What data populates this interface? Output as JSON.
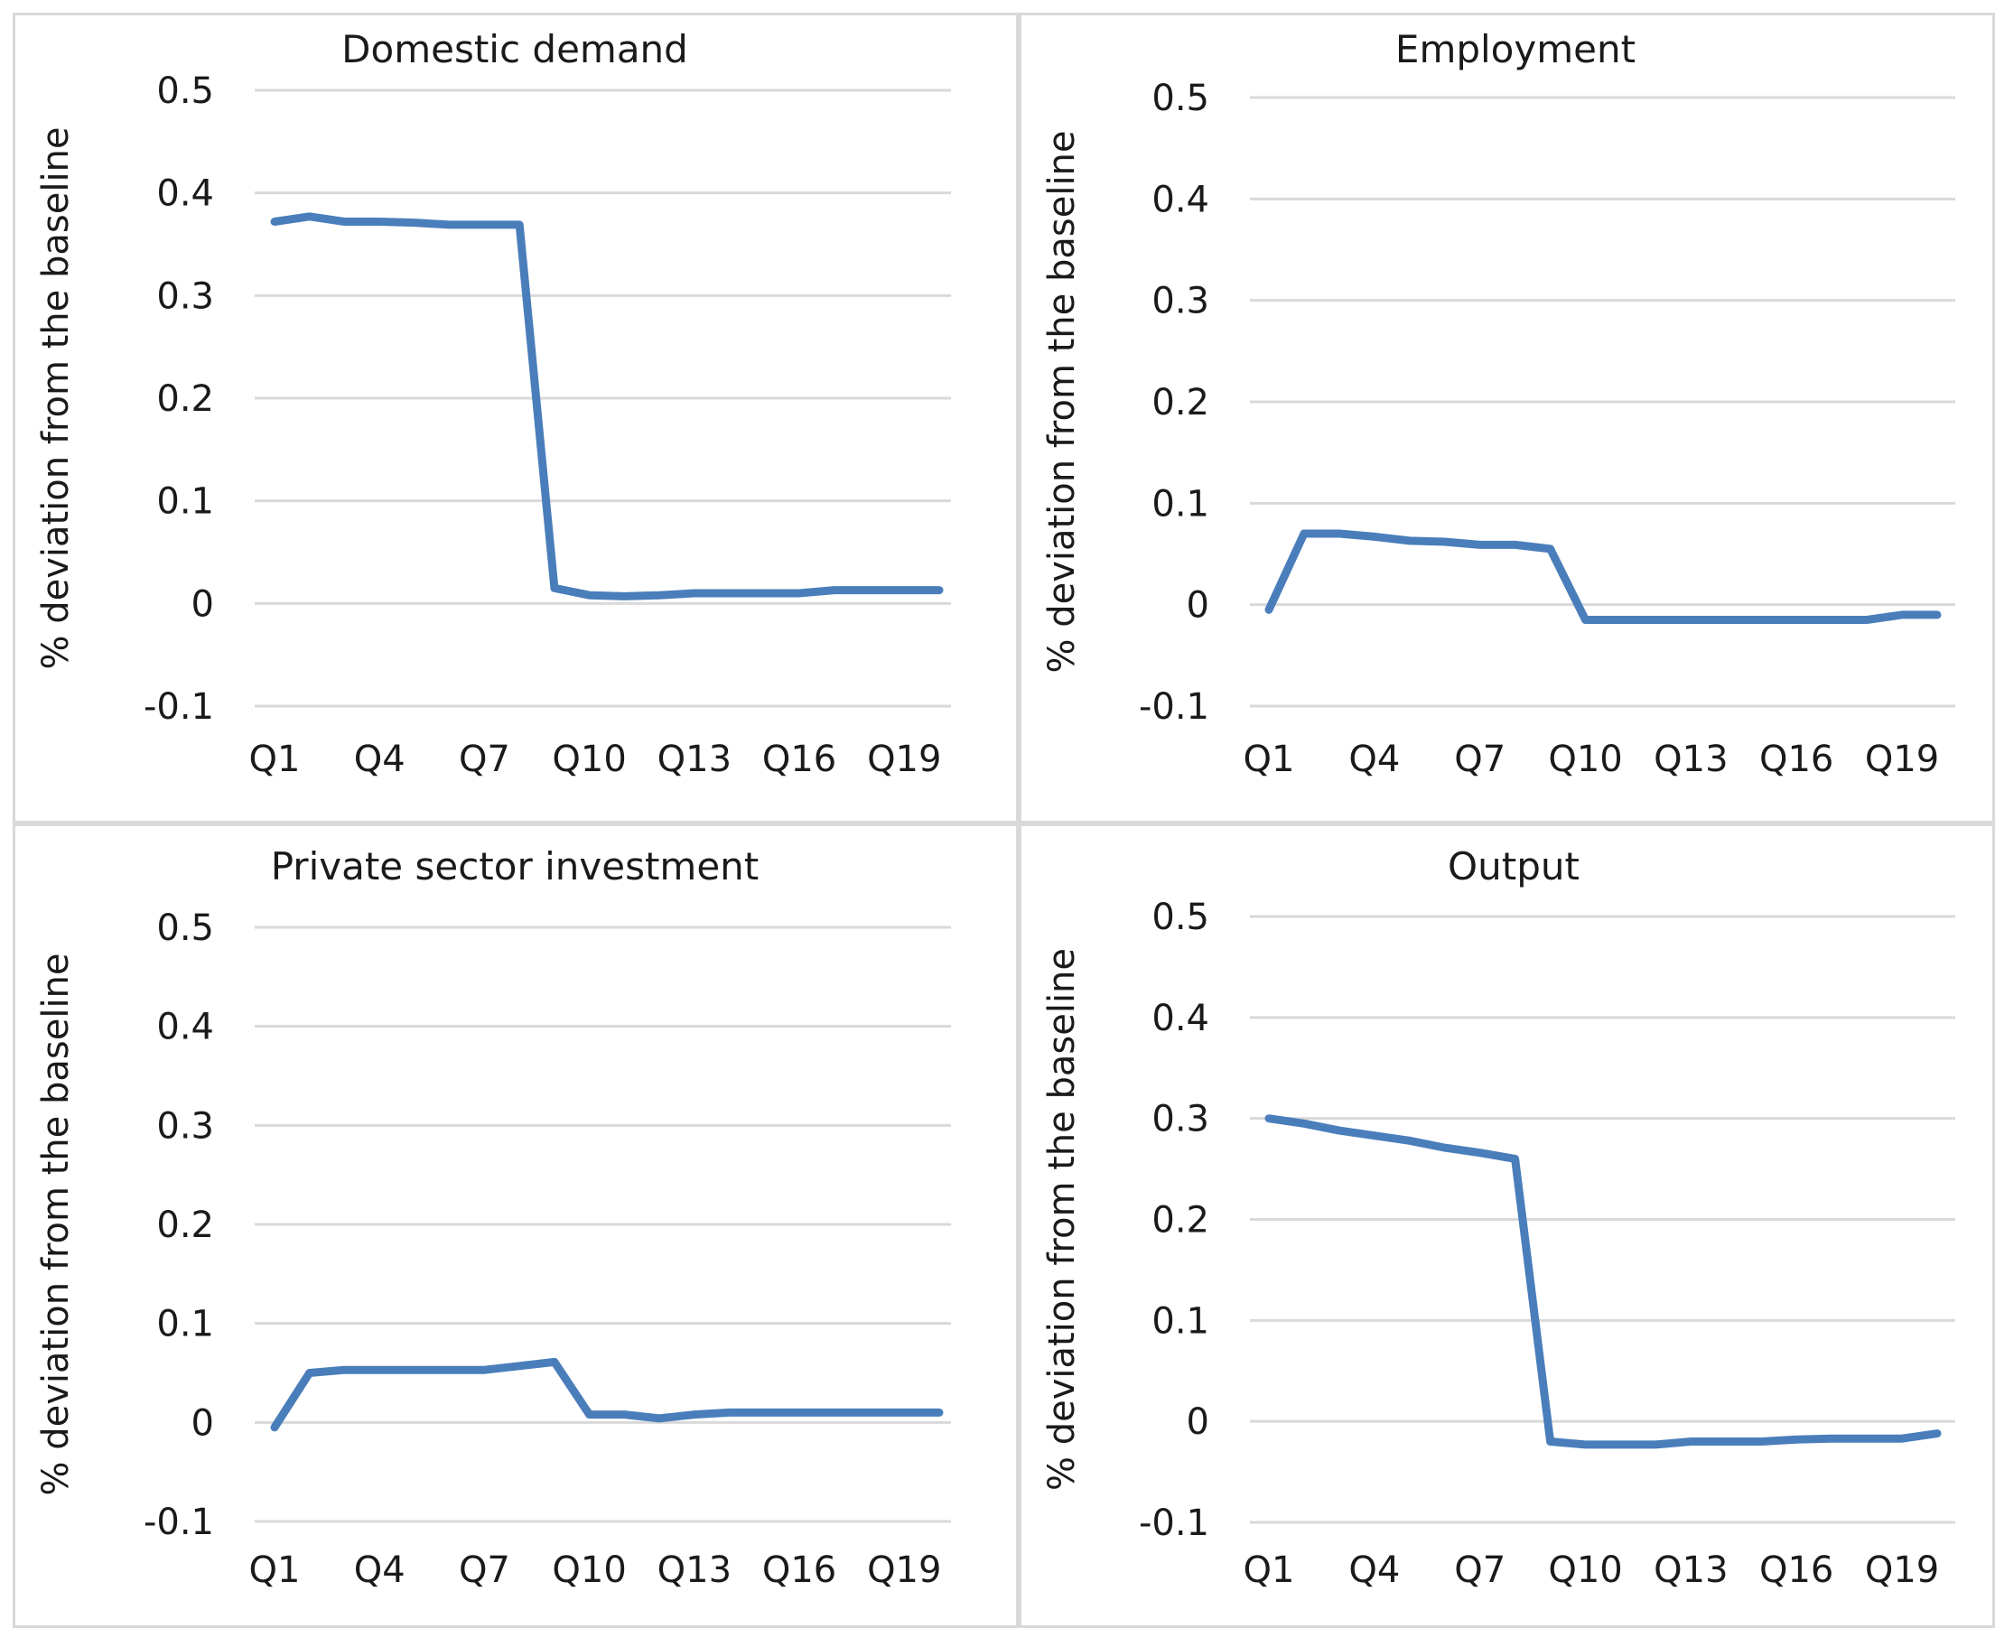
{
  "chart_data": [
    {
      "type": "line",
      "title": "Domestic demand",
      "ylabel": "% deviation from the baseline",
      "ylim": [
        -0.1,
        0.5
      ],
      "yticks": [
        "0.5",
        "0.4",
        "0.3",
        "0.2",
        "0.1",
        "0",
        "-0.1"
      ],
      "yticks_values": [
        0.5,
        0.4,
        0.3,
        0.2,
        0.1,
        0,
        -0.1
      ],
      "xtick_labels": [
        "Q1",
        "Q4",
        "Q7",
        "Q10",
        "Q13",
        "Q16",
        "Q19"
      ],
      "x": [
        "Q1",
        "Q2",
        "Q3",
        "Q4",
        "Q5",
        "Q6",
        "Q7",
        "Q8",
        "Q9",
        "Q10",
        "Q11",
        "Q12",
        "Q13",
        "Q14",
        "Q15",
        "Q16",
        "Q17",
        "Q18",
        "Q19",
        "Q20"
      ],
      "series": [
        {
          "values": [
            0.372,
            0.377,
            0.372,
            0.372,
            0.371,
            0.369,
            0.369,
            0.369,
            0.015,
            0.008,
            0.007,
            0.008,
            0.01,
            0.01,
            0.01,
            0.01,
            0.013,
            0.013,
            0.013,
            0.013
          ]
        }
      ],
      "grid": true,
      "color": "#4a7ebb"
    },
    {
      "type": "line",
      "title": "Employment",
      "ylabel": "% deviation from the baseline",
      "ylim": [
        -0.1,
        0.5
      ],
      "yticks": [
        "0.5",
        "0.4",
        "0.3",
        "0.2",
        "0.1",
        "0",
        "-0.1"
      ],
      "yticks_values": [
        0.5,
        0.4,
        0.3,
        0.2,
        0.1,
        0,
        -0.1
      ],
      "xtick_labels": [
        "Q1",
        "Q4",
        "Q7",
        "Q10",
        "Q13",
        "Q16",
        "Q19"
      ],
      "x": [
        "Q1",
        "Q2",
        "Q3",
        "Q4",
        "Q5",
        "Q6",
        "Q7",
        "Q8",
        "Q9",
        "Q10",
        "Q11",
        "Q12",
        "Q13",
        "Q14",
        "Q15",
        "Q16",
        "Q17",
        "Q18",
        "Q19",
        "Q20"
      ],
      "series": [
        {
          "values": [
            -0.005,
            0.07,
            0.07,
            0.067,
            0.063,
            0.062,
            0.059,
            0.059,
            0.055,
            -0.015,
            -0.015,
            -0.015,
            -0.015,
            -0.015,
            -0.015,
            -0.015,
            -0.015,
            -0.015,
            -0.01,
            -0.01
          ]
        }
      ],
      "grid": true,
      "color": "#4a7ebb"
    },
    {
      "type": "line",
      "title": "Private sector investment",
      "ylabel": "% deviation from the baseline",
      "ylim": [
        -0.1,
        0.5
      ],
      "yticks": [
        "0.5",
        "0.4",
        "0.3",
        "0.2",
        "0.1",
        "0",
        "-0.1"
      ],
      "yticks_values": [
        0.5,
        0.4,
        0.3,
        0.2,
        0.1,
        0,
        -0.1
      ],
      "xtick_labels": [
        "Q1",
        "Q4",
        "Q7",
        "Q10",
        "Q13",
        "Q16",
        "Q19"
      ],
      "x": [
        "Q1",
        "Q2",
        "Q3",
        "Q4",
        "Q5",
        "Q6",
        "Q7",
        "Q8",
        "Q9",
        "Q10",
        "Q11",
        "Q12",
        "Q13",
        "Q14",
        "Q15",
        "Q16",
        "Q17",
        "Q18",
        "Q19",
        "Q20"
      ],
      "series": [
        {
          "values": [
            -0.005,
            0.05,
            0.053,
            0.053,
            0.053,
            0.053,
            0.053,
            0.057,
            0.061,
            0.008,
            0.008,
            0.004,
            0.008,
            0.01,
            0.01,
            0.01,
            0.01,
            0.01,
            0.01,
            0.01
          ]
        }
      ],
      "grid": true,
      "color": "#4a7ebb"
    },
    {
      "type": "line",
      "title": "Output",
      "ylabel": "% deviation from the baseline",
      "ylim": [
        -0.1,
        0.5
      ],
      "yticks": [
        "0.5",
        "0.4",
        "0.3",
        "0.2",
        "0.1",
        "0",
        "-0.1"
      ],
      "yticks_values": [
        0.5,
        0.4,
        0.3,
        0.2,
        0.1,
        0,
        -0.1
      ],
      "xtick_labels": [
        "Q1",
        "Q4",
        "Q7",
        "Q10",
        "Q13",
        "Q16",
        "Q19"
      ],
      "x": [
        "Q1",
        "Q2",
        "Q3",
        "Q4",
        "Q5",
        "Q6",
        "Q7",
        "Q8",
        "Q9",
        "Q10",
        "Q11",
        "Q12",
        "Q13",
        "Q14",
        "Q15",
        "Q16",
        "Q17",
        "Q18",
        "Q19",
        "Q20"
      ],
      "series": [
        {
          "values": [
            0.3,
            0.295,
            0.288,
            0.283,
            0.278,
            0.271,
            0.266,
            0.26,
            -0.02,
            -0.023,
            -0.023,
            -0.023,
            -0.02,
            -0.02,
            -0.02,
            -0.018,
            -0.017,
            -0.017,
            -0.017,
            -0.012
          ]
        }
      ],
      "grid": true,
      "color": "#4a7ebb"
    }
  ]
}
